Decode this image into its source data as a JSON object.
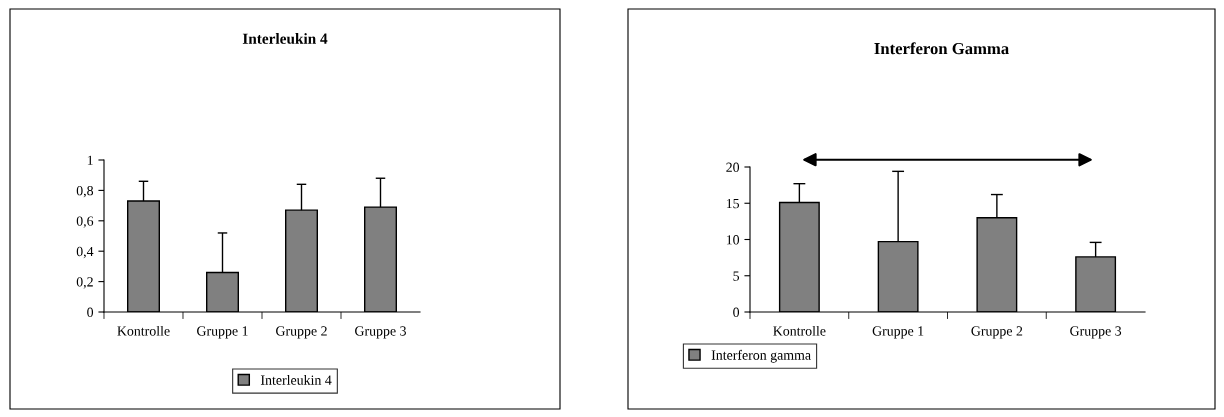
{
  "chart_data": [
    {
      "type": "bar",
      "title": "Interleukin 4",
      "categories": [
        "Kontrolle",
        "Gruppe 1",
        "Gruppe 2",
        "Gruppe 3"
      ],
      "series": [
        {
          "name": "Interleukin 4",
          "color": "#808080",
          "values": [
            0.73,
            0.26,
            0.67,
            0.69
          ],
          "errors": [
            [
              0.73,
              0.86
            ],
            [
              0.26,
              0.52
            ],
            [
              0.67,
              0.84
            ],
            [
              0.69,
              0.88
            ]
          ]
        }
      ],
      "ylim": [
        0,
        1
      ],
      "yticks": [
        {
          "value": 0,
          "label": "0"
        },
        {
          "value": 0.2,
          "label": "0,2"
        },
        {
          "value": 0.4,
          "label": "0,4"
        },
        {
          "value": 0.6,
          "label": "0,6"
        },
        {
          "value": 0.8,
          "label": "0,8"
        },
        {
          "value": 1,
          "label": "1"
        }
      ],
      "grid": false,
      "legend": "bottom"
    },
    {
      "type": "bar",
      "title": "Interferon Gamma",
      "categories": [
        "Kontrolle",
        "Gruppe 1",
        "Gruppe 2",
        "Gruppe 3"
      ],
      "series": [
        {
          "name": "Interferon gamma",
          "color": "#808080",
          "values": [
            15.1,
            9.7,
            13.0,
            7.6
          ],
          "errors": [
            [
              15.1,
              17.7
            ],
            [
              9.7,
              19.4
            ],
            [
              13.0,
              16.2
            ],
            [
              7.6,
              9.6
            ]
          ]
        }
      ],
      "ylim": [
        0,
        20
      ],
      "yticks": [
        0,
        5,
        10,
        15,
        20
      ],
      "grid": false,
      "legend": "bottom"
    }
  ]
}
